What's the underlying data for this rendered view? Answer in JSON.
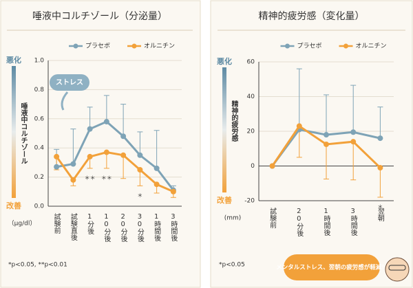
{
  "chart_data": [
    {
      "type": "line",
      "title": "唾液中コルチゾール（分泌量）",
      "categories": [
        "試験前",
        "試験直後",
        "1分後",
        "10分後",
        "20分後",
        "30分後",
        "1時間後",
        "3時間後"
      ],
      "series": [
        {
          "name": "プラセボ",
          "color": "#7ea3b6",
          "error_direction": "up",
          "values": [
            0.27,
            0.29,
            0.53,
            0.58,
            0.48,
            0.35,
            0.26,
            0.11
          ],
          "errors": [
            0.12,
            0.24,
            0.15,
            0.18,
            0.22,
            0.16,
            0.26,
            0.03
          ]
        },
        {
          "name": "オルニチン",
          "color": "#f2a13a",
          "error_direction": "down",
          "values": [
            0.34,
            0.18,
            0.34,
            0.37,
            0.35,
            0.25,
            0.15,
            0.1
          ],
          "errors": [
            0.09,
            0.04,
            0.08,
            0.11,
            0.16,
            0.11,
            0.06,
            0.04
          ]
        }
      ],
      "ylim": [
        0,
        1
      ],
      "yticks": [
        {
          "value": 0,
          "label": "0.0"
        },
        0.2,
        0.4,
        0.6,
        0.8,
        {
          "value": 1,
          "label": "1.0"
        }
      ],
      "y_label": "唾液中コルチゾール",
      "y_top_label": "悪化",
      "y_bottom_label": "改善",
      "unit": "（μg/dl）",
      "significance": [
        null,
        null,
        "＊＊",
        "＊＊",
        null,
        "＊",
        null,
        null
      ],
      "footnote": "*p<0.05, **p<0.01",
      "annotation": "ストレス"
    },
    {
      "type": "line",
      "title": "精神的疲労感（変化量）",
      "categories": [
        "試験前",
        "20分後",
        "1時間後",
        "3時間後",
        "翌朝"
      ],
      "series": [
        {
          "name": "プラセボ",
          "color": "#7ea3b6",
          "error_direction": "up",
          "values": [
            0,
            21,
            18,
            19.5,
            16
          ],
          "errors": [
            0,
            35,
            23,
            27,
            18
          ]
        },
        {
          "name": "オルニチン",
          "color": "#f2a13a",
          "error_direction": "down",
          "values": [
            0,
            23,
            12.5,
            14,
            -1
          ],
          "errors": [
            0,
            18,
            20,
            22,
            17
          ]
        }
      ],
      "ylim": [
        -20,
        60
      ],
      "yticks": [
        -20,
        0,
        20,
        40,
        60
      ],
      "zero_line": true,
      "y_label": "精神的疲労感",
      "y_top_label": "悪化",
      "y_bottom_label": "改善",
      "unit": "(mm)",
      "significance": [
        null,
        null,
        null,
        null,
        "＊"
      ],
      "footnote": "*p<0.05",
      "annotation": "メンタルストレス、翌朝の疲労感が軽減！"
    }
  ]
}
